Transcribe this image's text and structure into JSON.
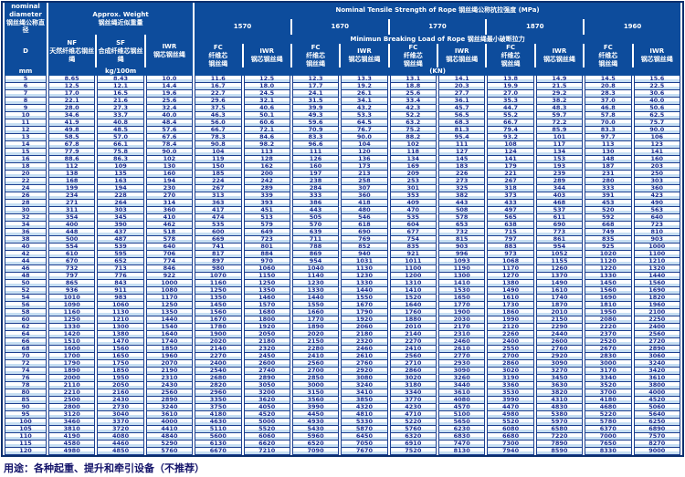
{
  "header": {
    "diameter": {
      "en": "nominal diameter",
      "zh": "钢丝绳公称直径",
      "symbol": "D",
      "unit": "mm"
    },
    "weight": {
      "en": "Approx. Weight",
      "zh": "钢丝绳近似重量",
      "unit": "kg/100m",
      "cols": [
        {
          "code": "NF",
          "zh": "天然纤维芯钢丝绳"
        },
        {
          "code": "SF",
          "zh": "合成纤维芯钢丝绳"
        },
        {
          "code": "IWR",
          "zh": "钢芯钢丝绳"
        }
      ]
    },
    "tensile_title": "Nominal Tensile Strength of Rope 钢丝绳公称抗拉强度 (MPa)",
    "strengths": [
      "1570",
      "1670",
      "1770",
      "1870",
      "1960"
    ],
    "breaking_title": "Minimun Breaking Load of Rope 钢丝绳最小破断拉力",
    "load_cols": {
      "fc_code": "FC",
      "fc_zh1": "纤维芯",
      "fc_zh2": "钢丝绳",
      "iwr_code": "IWR",
      "iwr_zh": "钢芯钢丝绳"
    },
    "load_unit": "(KN)"
  },
  "table": {
    "rows": [
      [
        "5",
        "8.65",
        "8.43",
        "10.0",
        "11.6",
        "12.5",
        "12.3",
        "13.3",
        "13.1",
        "14.1",
        "13.8",
        "14.9",
        "14.5",
        "15.6"
      ],
      [
        "6",
        "12.5",
        "12.1",
        "14.4",
        "16.7",
        "18.0",
        "17.7",
        "19.2",
        "18.8",
        "20.3",
        "19.9",
        "21.5",
        "20.8",
        "22.5"
      ],
      [
        "7",
        "17.0",
        "16.5",
        "19.6",
        "22.7",
        "24.5",
        "24.1",
        "26.1",
        "25.6",
        "27.7",
        "27.0",
        "29.2",
        "28.3",
        "30.6"
      ],
      [
        "8",
        "22.1",
        "21.6",
        "25.6",
        "29.6",
        "32.1",
        "31.5",
        "34.1",
        "33.4",
        "36.1",
        "35.3",
        "38.2",
        "37.0",
        "40.0"
      ],
      [
        "9",
        "28.0",
        "27.3",
        "32.4",
        "37.5",
        "40.6",
        "39.9",
        "43.2",
        "42.3",
        "45.7",
        "44.7",
        "48.3",
        "46.8",
        "50.6"
      ],
      [
        "10",
        "34.6",
        "33.7",
        "40.0",
        "46.3",
        "50.1",
        "49.3",
        "53.3",
        "52.2",
        "56.5",
        "55.2",
        "59.7",
        "57.8",
        "62.5"
      ],
      [
        "11",
        "41.9",
        "40.8",
        "48.4",
        "56.0",
        "60.6",
        "59.6",
        "64.5",
        "63.2",
        "68.3",
        "66.7",
        "72.2",
        "70.0",
        "75.7"
      ],
      [
        "12",
        "49.8",
        "48.5",
        "57.6",
        "66.7",
        "72.1",
        "70.9",
        "76.7",
        "75.2",
        "81.3",
        "79.4",
        "85.9",
        "83.3",
        "90.0"
      ],
      [
        "13",
        "58.5",
        "57.0",
        "67.6",
        "78.3",
        "84.6",
        "83.3",
        "90.0",
        "88.2",
        "95.4",
        "93.2",
        "101",
        "97.7",
        "106"
      ],
      [
        "14",
        "67.8",
        "66.1",
        "78.4",
        "90.8",
        "98.2",
        "96.6",
        "104",
        "102",
        "111",
        "108",
        "117",
        "113",
        "123"
      ],
      [
        "15",
        "77.9",
        "75.8",
        "90.0",
        "104",
        "113",
        "111",
        "120",
        "118",
        "127",
        "124",
        "134",
        "130",
        "141"
      ],
      [
        "16",
        "88.6",
        "86.3",
        "102",
        "119",
        "128",
        "126",
        "136",
        "134",
        "145",
        "141",
        "153",
        "148",
        "160"
      ],
      [
        "18",
        "112",
        "109",
        "130",
        "150",
        "162",
        "160",
        "173",
        "169",
        "183",
        "179",
        "193",
        "187",
        "203"
      ],
      [
        "20",
        "138",
        "135",
        "160",
        "185",
        "200",
        "197",
        "213",
        "209",
        "226",
        "221",
        "239",
        "231",
        "250"
      ],
      [
        "22",
        "168",
        "163",
        "194",
        "224",
        "242",
        "238",
        "258",
        "253",
        "273",
        "267",
        "289",
        "280",
        "303"
      ],
      [
        "24",
        "199",
        "194",
        "230",
        "267",
        "289",
        "284",
        "307",
        "301",
        "325",
        "318",
        "344",
        "333",
        "360"
      ],
      [
        "26",
        "234",
        "228",
        "270",
        "313",
        "339",
        "333",
        "360",
        "353",
        "382",
        "373",
        "403",
        "391",
        "423"
      ],
      [
        "28",
        "271",
        "264",
        "314",
        "363",
        "393",
        "386",
        "418",
        "409",
        "443",
        "433",
        "468",
        "453",
        "490"
      ],
      [
        "30",
        "311",
        "303",
        "360",
        "417",
        "451",
        "443",
        "480",
        "470",
        "508",
        "497",
        "537",
        "520",
        "563"
      ],
      [
        "32",
        "354",
        "345",
        "410",
        "474",
        "513",
        "505",
        "546",
        "535",
        "578",
        "565",
        "611",
        "592",
        "640"
      ],
      [
        "34",
        "400",
        "390",
        "462",
        "535",
        "579",
        "570",
        "618",
        "604",
        "653",
        "638",
        "690",
        "668",
        "723"
      ],
      [
        "36",
        "448",
        "437",
        "518",
        "600",
        "649",
        "639",
        "690",
        "677",
        "732",
        "715",
        "773",
        "749",
        "810"
      ],
      [
        "38",
        "500",
        "487",
        "578",
        "669",
        "723",
        "711",
        "769",
        "754",
        "815",
        "797",
        "861",
        "835",
        "903"
      ],
      [
        "40",
        "554",
        "539",
        "640",
        "741",
        "801",
        "788",
        "852",
        "835",
        "903",
        "883",
        "954",
        "925",
        "1000"
      ],
      [
        "42",
        "610",
        "595",
        "706",
        "817",
        "884",
        "869",
        "940",
        "921",
        "996",
        "973",
        "1052",
        "1020",
        "1100"
      ],
      [
        "44",
        "670",
        "652",
        "774",
        "897",
        "970",
        "954",
        "1031",
        "1011",
        "1093",
        "1068",
        "1155",
        "1120",
        "1210"
      ],
      [
        "46",
        "732",
        "713",
        "846",
        "980",
        "1060",
        "1040",
        "1130",
        "1100",
        "1190",
        "1170",
        "1260",
        "1220",
        "1320"
      ],
      [
        "48",
        "797",
        "776",
        "922",
        "1070",
        "1150",
        "1140",
        "1230",
        "1200",
        "1300",
        "1270",
        "1370",
        "1330",
        "1440"
      ],
      [
        "50",
        "865",
        "843",
        "1000",
        "1160",
        "1250",
        "1230",
        "1330",
        "1310",
        "1410",
        "1380",
        "1490",
        "1450",
        "1560"
      ],
      [
        "52",
        "936",
        "911",
        "1080",
        "1250",
        "1350",
        "1330",
        "1440",
        "1410",
        "1530",
        "1490",
        "1610",
        "1560",
        "1690"
      ],
      [
        "54",
        "1010",
        "983",
        "1170",
        "1350",
        "1460",
        "1440",
        "1550",
        "1520",
        "1650",
        "1610",
        "1740",
        "1690",
        "1820"
      ],
      [
        "56",
        "1090",
        "1060",
        "1250",
        "1450",
        "1570",
        "1550",
        "1670",
        "1640",
        "1770",
        "1730",
        "1870",
        "1810",
        "1960"
      ],
      [
        "58",
        "1160",
        "1130",
        "1350",
        "1560",
        "1680",
        "1660",
        "1790",
        "1760",
        "1900",
        "1860",
        "2010",
        "1950",
        "2100"
      ],
      [
        "60",
        "1250",
        "1210",
        "1440",
        "1670",
        "1800",
        "1770",
        "1920",
        "1880",
        "2030",
        "1990",
        "2150",
        "2080",
        "2250"
      ],
      [
        "62",
        "1330",
        "1300",
        "1540",
        "1780",
        "1920",
        "1890",
        "2060",
        "2010",
        "2170",
        "2120",
        "2290",
        "2220",
        "2400"
      ],
      [
        "64",
        "1420",
        "1380",
        "1640",
        "1900",
        "2050",
        "2020",
        "2180",
        "2140",
        "2310",
        "2260",
        "2440",
        "2370",
        "2560"
      ],
      [
        "66",
        "1510",
        "1470",
        "1740",
        "2020",
        "2180",
        "2150",
        "2320",
        "2270",
        "2460",
        "2400",
        "2600",
        "2520",
        "2720"
      ],
      [
        "68",
        "1600",
        "1560",
        "1850",
        "2140",
        "2320",
        "2280",
        "2460",
        "2410",
        "2610",
        "2550",
        "2760",
        "2670",
        "2890"
      ],
      [
        "70",
        "1700",
        "1650",
        "1960",
        "2270",
        "2450",
        "2410",
        "2610",
        "2560",
        "2770",
        "2700",
        "2920",
        "2830",
        "3060"
      ],
      [
        "72",
        "1790",
        "1750",
        "2070",
        "2400",
        "2600",
        "2560",
        "2760",
        "2710",
        "2930",
        "2860",
        "3090",
        "3000",
        "3240"
      ],
      [
        "74",
        "1890",
        "1850",
        "2190",
        "2540",
        "2740",
        "2700",
        "2920",
        "2860",
        "3090",
        "3020",
        "3270",
        "3170",
        "3420"
      ],
      [
        "76",
        "2000",
        "1950",
        "2310",
        "2680",
        "2890",
        "2850",
        "3080",
        "3020",
        "3260",
        "3190",
        "3450",
        "3340",
        "3610"
      ],
      [
        "78",
        "2110",
        "2050",
        "2430",
        "2820",
        "3050",
        "3000",
        "3240",
        "3180",
        "3440",
        "3360",
        "3630",
        "3520",
        "3800"
      ],
      [
        "80",
        "2210",
        "2160",
        "2560",
        "2960",
        "3200",
        "3150",
        "3410",
        "3340",
        "3610",
        "3530",
        "3820",
        "3700",
        "4000"
      ],
      [
        "85",
        "2500",
        "2430",
        "2890",
        "3350",
        "3620",
        "3560",
        "3850",
        "3770",
        "4080",
        "3990",
        "4310",
        "4180",
        "4520"
      ],
      [
        "90",
        "2800",
        "2730",
        "3240",
        "3750",
        "4050",
        "3990",
        "4320",
        "4230",
        "4570",
        "4470",
        "4830",
        "4680",
        "5060"
      ],
      [
        "95",
        "3120",
        "3040",
        "3610",
        "4180",
        "4520",
        "4450",
        "4810",
        "4710",
        "5100",
        "4980",
        "5380",
        "5220",
        "5640"
      ],
      [
        "100",
        "3460",
        "3370",
        "4000",
        "4630",
        "5000",
        "4930",
        "5330",
        "5220",
        "5650",
        "5520",
        "5970",
        "5780",
        "6250"
      ],
      [
        "105",
        "3810",
        "3720",
        "4410",
        "5110",
        "5520",
        "5430",
        "5870",
        "5760",
        "6230",
        "6080",
        "6580",
        "6370",
        "6890"
      ],
      [
        "110",
        "4190",
        "4080",
        "4840",
        "5600",
        "6060",
        "5960",
        "6450",
        "6320",
        "6830",
        "6680",
        "7220",
        "7000",
        "7570"
      ],
      [
        "115",
        "4580",
        "4460",
        "5290",
        "6130",
        "6620",
        "6520",
        "7050",
        "6910",
        "7470",
        "7300",
        "7890",
        "7650",
        "8270"
      ],
      [
        "120",
        "4980",
        "4850",
        "5760",
        "6670",
        "7210",
        "7090",
        "7670",
        "7520",
        "8130",
        "7940",
        "8590",
        "8330",
        "9000"
      ]
    ]
  },
  "footer": {
    "usage": "用途：各种起重、提升和牵引设备（不推荐）"
  },
  "colors": {
    "header_bg": "#0d4c9c",
    "grid_navy": "#1c3f8f",
    "stripe_blue": "#c7dff3",
    "value_text": "#1b2d8f"
  }
}
